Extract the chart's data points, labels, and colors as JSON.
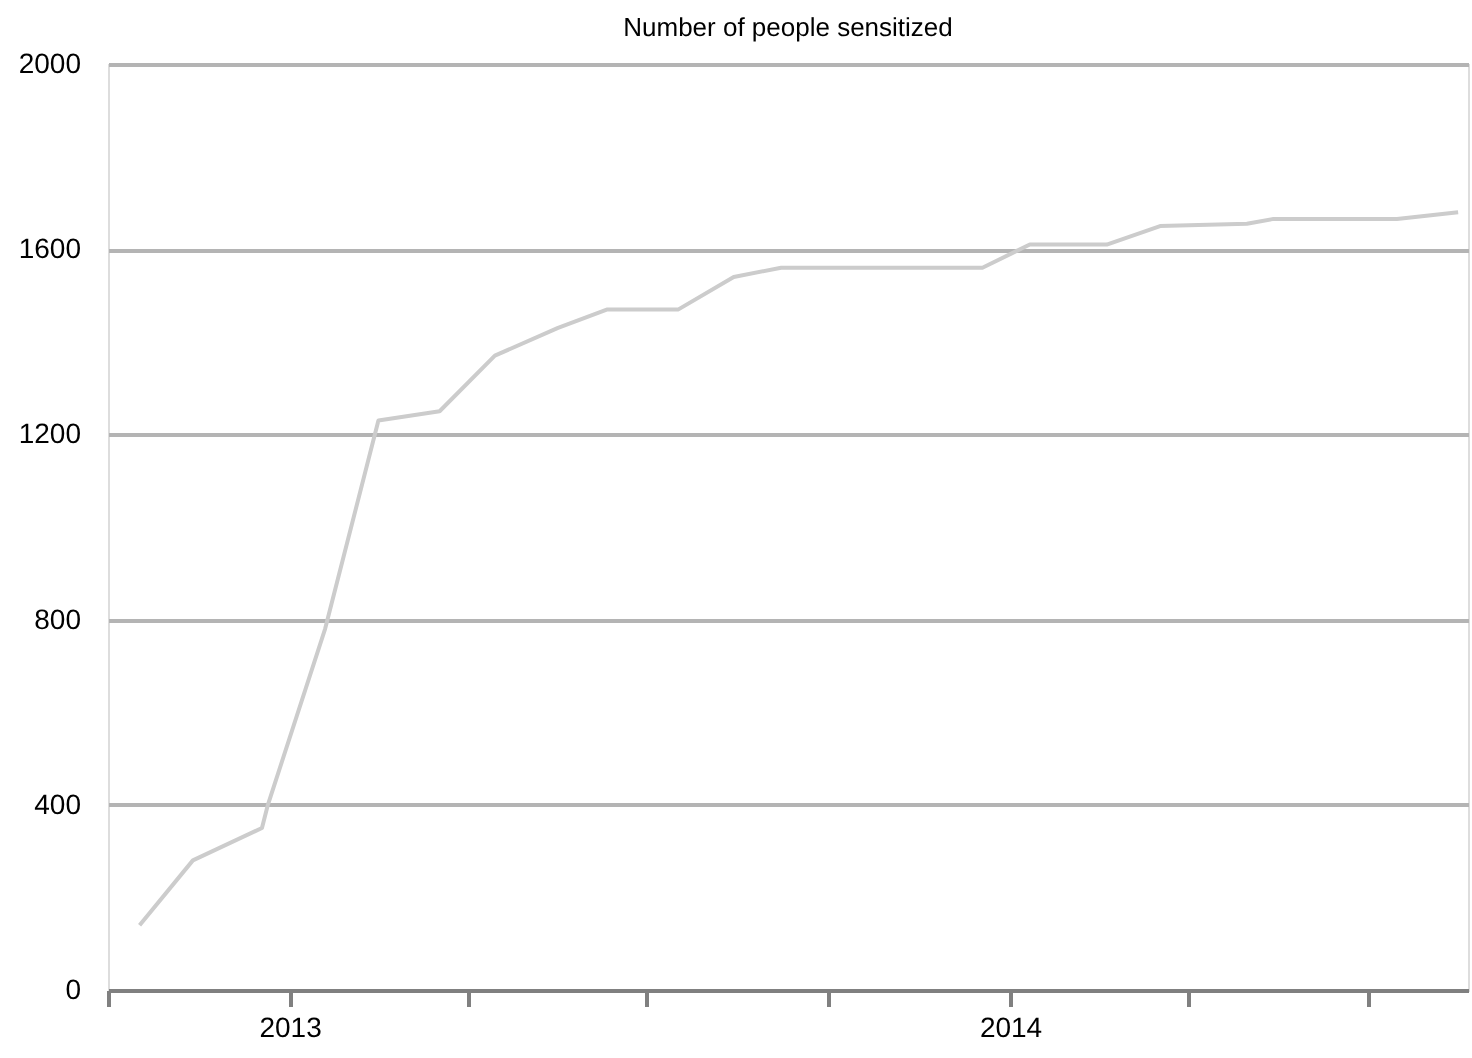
{
  "chart_data": {
    "type": "line",
    "title": "Number of people sensitized",
    "x": [
      "2012-10-17",
      "2012-11-13",
      "2012-12-18",
      "2012-12-21",
      "2013-01-19",
      "2013-02-15",
      "2013-03-18",
      "2013-04-15",
      "2013-05-17",
      "2013-06-11",
      "2013-07-17",
      "2013-08-14",
      "2013-09-07",
      "2013-12-18",
      "2014-01-11",
      "2014-02-19",
      "2014-03-18",
      "2014-05-01",
      "2014-05-14",
      "2014-07-16",
      "2014-08-16"
    ],
    "series": [
      {
        "color": "#cccccc",
        "values": [
          140,
          280,
          350,
          400,
          780,
          1230,
          1250,
          1370,
          1430,
          1470,
          1470,
          1540,
          1560,
          1560,
          1610,
          1610,
          1650,
          1655,
          1665,
          1665,
          1680
        ]
      }
    ],
    "xlim": [
      "2012-10-01",
      "2014-08-21"
    ],
    "xticks": [
      {
        "value": "2012-10-01",
        "label": null
      },
      {
        "value": "2013-01-01",
        "label": "2013"
      },
      {
        "value": "2013-04-01",
        "label": null
      },
      {
        "value": "2013-07-01",
        "label": null
      },
      {
        "value": "2013-10-01",
        "label": null
      },
      {
        "value": "2014-01-01",
        "label": "2014"
      },
      {
        "value": "2014-04-01",
        "label": null
      },
      {
        "value": "2014-07-01",
        "label": null
      }
    ],
    "ylim": [
      0,
      2000
    ],
    "yticks": [
      0,
      400,
      800,
      1200,
      1600,
      2000
    ],
    "grid": "y",
    "marker": "none",
    "line_style": "solid"
  }
}
